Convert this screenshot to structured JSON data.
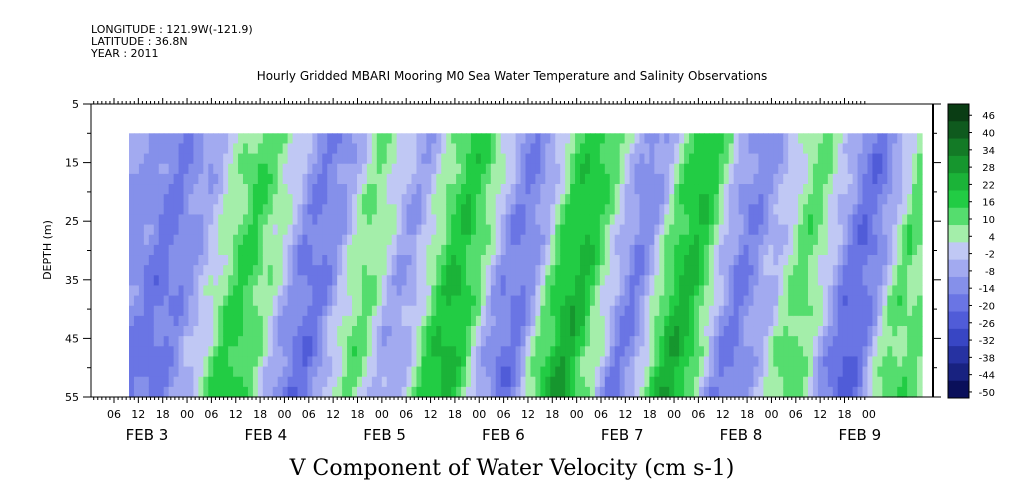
{
  "header": {
    "longitude": "LONGITUDE : 121.9W(-121.9)",
    "latitude": "LATITUDE : 36.8N",
    "year": "YEAR : 2011",
    "title": "Hourly Gridded MBARI Mooring M0 Sea Water Temperature and Salinity Observations"
  },
  "chart_data": {
    "type": "heatmap",
    "title": "Hourly Gridded MBARI Mooring M0 Sea Water Temperature and Salinity Observations",
    "variable_label": "V Component of Water Velocity (cm s-1)",
    "ylabel": "DEPTH (m)",
    "xlabel": "",
    "ylim": [
      55,
      5
    ],
    "y_ticks": [
      5,
      15,
      25,
      35,
      45,
      55
    ],
    "y_tick_labels": [
      "5",
      "15",
      "25",
      "35",
      "45",
      "55"
    ],
    "data_depth_range": [
      10,
      55
    ],
    "x_hour_labels": [
      "06",
      "12",
      "18",
      "00",
      "06",
      "12",
      "18",
      "00",
      "06",
      "12",
      "18",
      "00",
      "06",
      "12",
      "18",
      "00",
      "06",
      "12",
      "18",
      "00",
      "06",
      "12",
      "18",
      "00",
      "06",
      "12",
      "18",
      "00",
      "06",
      "12",
      "18",
      "00"
    ],
    "x_day_labels": [
      "FEB  3",
      "FEB  4",
      "FEB  5",
      "FEB  6",
      "FEB  7",
      "FEB  8",
      "FEB  9"
    ],
    "colorbar": {
      "levels": [
        "46",
        "40",
        "34",
        "28",
        "22",
        "16",
        "10",
        "4",
        "-2",
        "-8",
        "-14",
        "-20",
        "-26",
        "-32",
        "-38",
        "-44",
        "-50"
      ],
      "colors": [
        "#0a3d14",
        "#0f5a1e",
        "#137a26",
        "#16962e",
        "#1bb338",
        "#22cc44",
        "#55dd6e",
        "#a4eeaa",
        "#c0c8f4",
        "#a2aaf0",
        "#8590ea",
        "#6a75e4",
        "#505cd8",
        "#3846c4",
        "#2632a2",
        "#182280",
        "#0a0f5a"
      ]
    },
    "field_profile": [
      -10,
      -11,
      -13,
      -16,
      -15,
      -12,
      -8,
      -4,
      2,
      8,
      14,
      18,
      14,
      9,
      4,
      -4,
      -12,
      -16,
      -15,
      -10,
      -2,
      6,
      12,
      8,
      2,
      -5,
      -8,
      -3,
      6,
      14,
      20,
      22,
      16,
      8,
      -2,
      -10,
      -15,
      -14,
      -6,
      6,
      16,
      22,
      24,
      18,
      10,
      2,
      -8,
      -14,
      -10,
      0,
      12,
      20,
      24,
      20,
      10,
      -2,
      -10,
      -14,
      -12,
      -6,
      -2,
      4,
      10,
      14,
      8,
      0,
      -8,
      -16,
      -20,
      -15,
      -6,
      4,
      14,
      10
    ]
  }
}
